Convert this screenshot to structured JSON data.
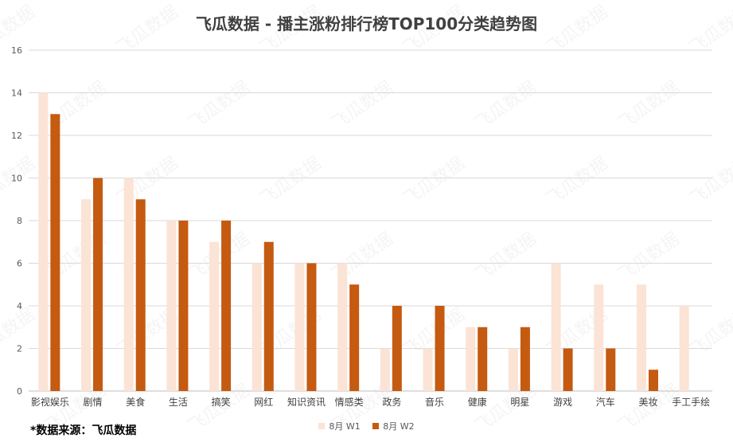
{
  "chart_data": {
    "type": "bar",
    "title": "飞瓜数据 - 播主涨粉排行榜TOP100分类趋势图",
    "categories": [
      "影视娱乐",
      "剧情",
      "美食",
      "生活",
      "搞笑",
      "网红",
      "知识资讯",
      "情感类",
      "政务",
      "音乐",
      "健康",
      "明星",
      "游戏",
      "汽车",
      "美妆",
      "手工手绘"
    ],
    "series": [
      {
        "name": "8月 W1",
        "color": "#fbe3d6",
        "values": [
          14,
          9,
          10,
          8,
          7,
          6,
          6,
          6,
          2,
          2,
          3,
          2,
          6,
          5,
          5,
          4
        ]
      },
      {
        "name": "8月 W2",
        "color": "#c55a11",
        "values": [
          13,
          10,
          9,
          8,
          8,
          7,
          6,
          5,
          4,
          4,
          3,
          3,
          2,
          2,
          1,
          0
        ]
      }
    ],
    "ylim": [
      0,
      16
    ],
    "yticks": [
      0,
      2,
      4,
      6,
      8,
      10,
      12,
      14,
      16
    ],
    "grid": true,
    "legend_position": "bottom"
  },
  "source_note": "*数据来源：飞瓜数据",
  "watermark_text": "飞瓜数据"
}
